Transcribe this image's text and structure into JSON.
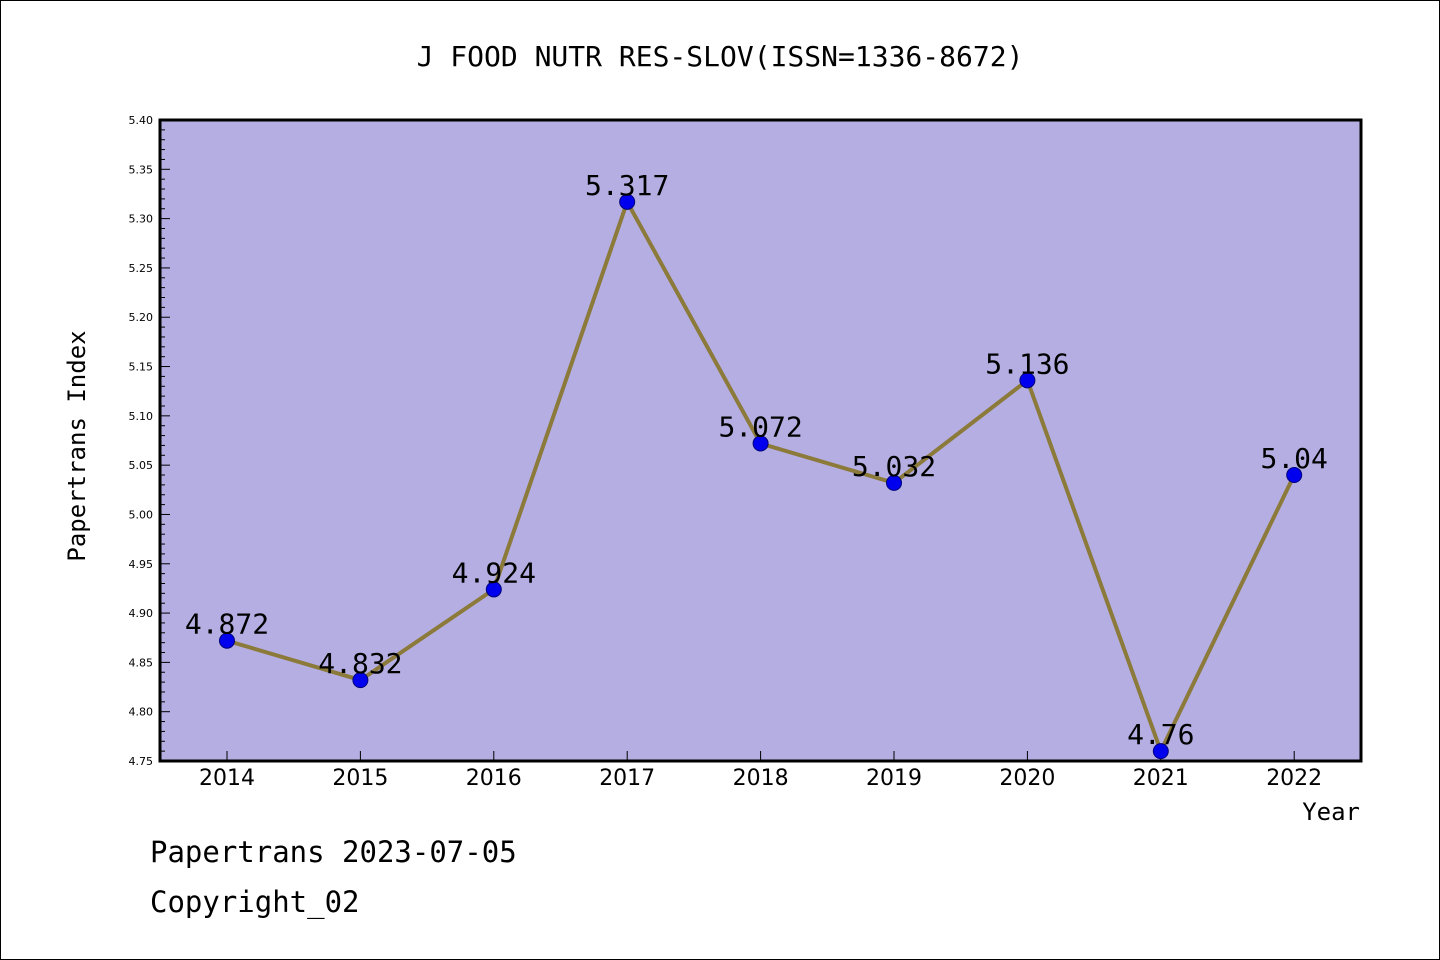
{
  "chart_data": {
    "type": "line",
    "title": "J FOOD NUTR RES-SLOV(ISSN=1336-8672)",
    "xlabel": "Year",
    "ylabel": "Papertrans Index",
    "categories": [
      "2014",
      "2015",
      "2016",
      "2017",
      "2018",
      "2019",
      "2020",
      "2021",
      "2022"
    ],
    "values": [
      4.872,
      4.832,
      4.924,
      5.317,
      5.072,
      5.032,
      5.136,
      4.76,
      5.04
    ],
    "data_labels": [
      "4.872",
      "4.832",
      "4.924",
      "5.317",
      "5.072",
      "5.032",
      "5.136",
      "4.76",
      "5.04"
    ],
    "ylim": [
      4.75,
      5.4
    ],
    "yticks": [
      "4.75",
      "4.80",
      "4.85",
      "4.90",
      "4.95",
      "5.00",
      "5.05",
      "5.10",
      "5.15",
      "5.20",
      "5.25",
      "5.30",
      "5.35",
      "5.40"
    ],
    "grid": false,
    "legend": "none",
    "colors": {
      "plot_background": "#b5aee2",
      "line": "#8b7a3a",
      "marker": "#0000ee",
      "marker_edge": "#00007a"
    }
  },
  "footer": {
    "date_line": "Papertrans 2023-07-05",
    "copyright": "Copyright_02"
  }
}
